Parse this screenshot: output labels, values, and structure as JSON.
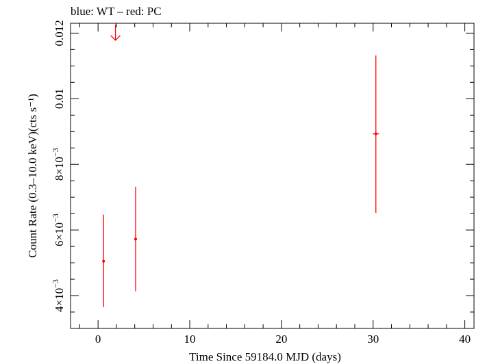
{
  "chart_data": {
    "type": "scatter",
    "title": "blue: WT – red: PC",
    "xlabel": "Time Since 59184.0 MJD (days)",
    "ylabel": "Count Rate (0.3–10.0 keV)(cts s⁻¹)",
    "xlim": [
      -3.0,
      41.0
    ],
    "ylim": [
      0.003,
      0.0123
    ],
    "x_ticks": [
      {
        "value": 0,
        "label": "0"
      },
      {
        "value": 10,
        "label": "10"
      },
      {
        "value": 20,
        "label": "20"
      },
      {
        "value": 30,
        "label": "30"
      },
      {
        "value": 40,
        "label": "40"
      }
    ],
    "y_ticks": [
      {
        "value": 0.004,
        "mantissa": "4",
        "exp": "−3"
      },
      {
        "value": 0.006,
        "mantissa": "6",
        "exp": "−3"
      },
      {
        "value": 0.008,
        "mantissa": "8",
        "exp": "−3"
      },
      {
        "value": 0.01,
        "label": "0.01"
      },
      {
        "value": 0.012,
        "label": "0.012"
      }
    ],
    "x_minor_step": 2,
    "y_minor_step": 0.0005,
    "series": [
      {
        "mode": "PC",
        "color": "#ff0000",
        "points": [
          {
            "x": 0.6,
            "y": 0.00505,
            "xerr": 0.1,
            "ylo": 0.00365,
            "yhi": 0.00647
          },
          {
            "x": 4.1,
            "y": 0.00572,
            "xerr": 0.1,
            "ylo": 0.00413,
            "yhi": 0.00732
          },
          {
            "x": 30.3,
            "y": 0.00893,
            "xerr": 0.35,
            "ylo": 0.00652,
            "yhi": 0.01132
          }
        ],
        "upper_limits": [
          {
            "x": 1.9,
            "y": 0.0122
          }
        ]
      }
    ],
    "grid": false
  }
}
